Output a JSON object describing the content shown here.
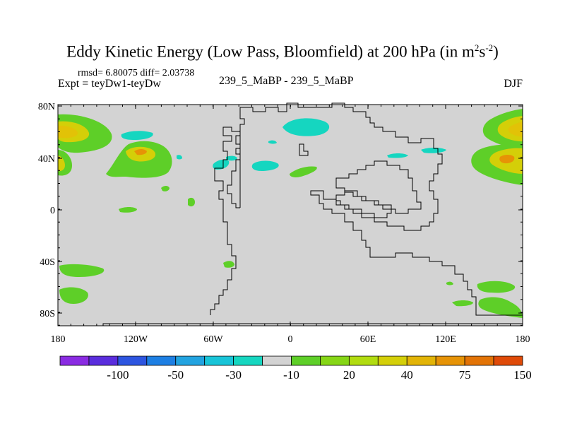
{
  "title": {
    "main": "Eddy Kinetic Energy (Low Pass, Bloomfield) at 200 hPa (in m",
    "sup1": "2",
    "mid": "s",
    "sup2": "-2",
    "end": ")"
  },
  "stats": "rmsd= 6.80075 diff= 2.03738",
  "experiment": "Expt = teyDw1-teyDw",
  "case_label": "239_5_MaBP - 239_5_MaBP",
  "season": "DJF",
  "map": {
    "lat_labels": [
      "80N",
      "40N",
      "0",
      "40S",
      "80S"
    ],
    "lon_labels": [
      "180",
      "120W",
      "60W",
      "0",
      "60E",
      "120E",
      "180"
    ],
    "land_color": "#d3d3d3",
    "coast_color": "#000000"
  },
  "colorbar": {
    "colors": [
      "#8a2be2",
      "#5a2ddd",
      "#2d55e0",
      "#1d7fe3",
      "#22a3e0",
      "#18c4d8",
      "#15d6c0",
      "#d3d3d3",
      "#5ecf28",
      "#86d616",
      "#b1dc10",
      "#d4cf08",
      "#e2b407",
      "#e69306",
      "#e27306",
      "#df4a08"
    ],
    "labels": [
      "-100",
      "-50",
      "-30",
      "-10",
      "20",
      "40",
      "75",
      "150"
    ]
  }
}
